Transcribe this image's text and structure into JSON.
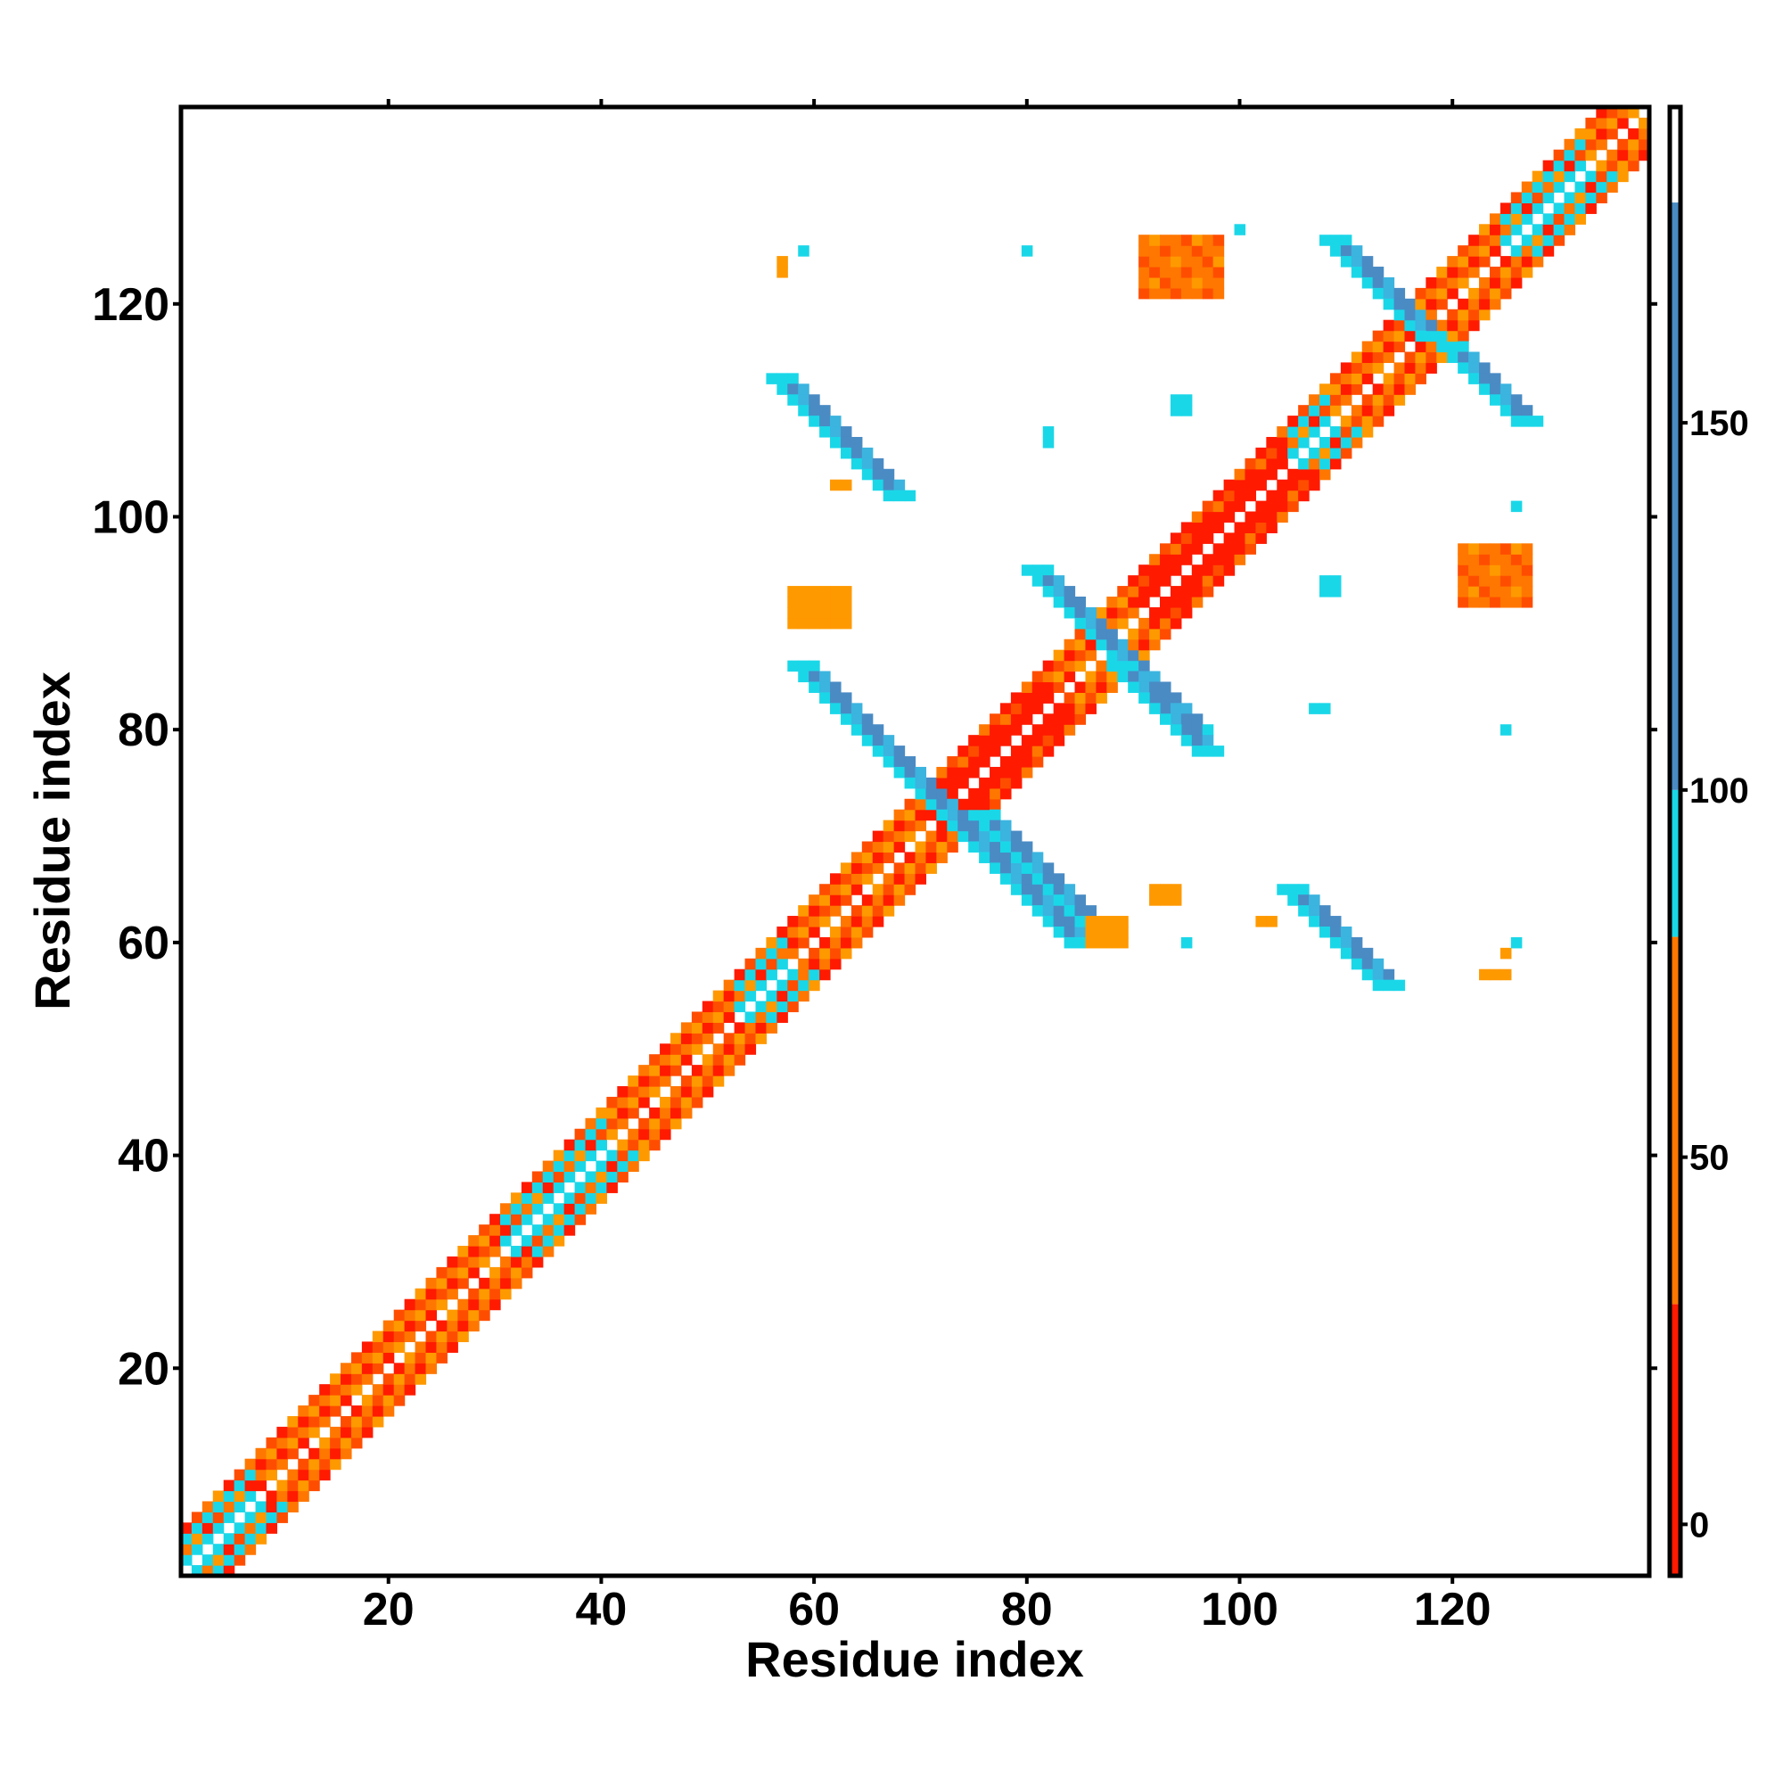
{
  "chart_data": {
    "type": "heatmap",
    "title": "",
    "xlabel": "Residue index",
    "ylabel": "Residue index",
    "xlim": [
      1,
      138
    ],
    "ylim": [
      1,
      138
    ],
    "x_ticks": [
      20,
      40,
      60,
      80,
      100,
      120
    ],
    "y_ticks": [
      20,
      40,
      60,
      80,
      100,
      120
    ],
    "grid": false,
    "colorbar": {
      "ticks": [
        0,
        50,
        100,
        150
      ],
      "range": [
        -7,
        193
      ],
      "placement": "right",
      "bands": [
        {
          "from": -7,
          "to": 30,
          "color": "#ff1a00"
        },
        {
          "from": 30,
          "to": 80,
          "color": "#ff7700"
        },
        {
          "from": 80,
          "to": 100,
          "color": "#1ad7e8"
        },
        {
          "from": 100,
          "to": 180,
          "color": "#4a8bc4"
        },
        {
          "from": 180,
          "to": 193,
          "color": "#ffffff"
        }
      ]
    },
    "colors": {
      "red": "#ff1a00",
      "red_orange": "#ff4d00",
      "orange": "#ff7700",
      "amber": "#ff9900",
      "cyan": "#1ad7e8",
      "light_blue": "#3bb4df",
      "steel_blue": "#4a8bc4"
    },
    "diagonal_band": {
      "from": 1,
      "to": 138,
      "offsets": [
        1,
        2,
        3,
        4
      ],
      "segments": [
        {
          "from": 1,
          "to": 7,
          "color": "cyan"
        },
        {
          "from": 7,
          "to": 30,
          "color": "orange"
        },
        {
          "from": 30,
          "to": 40,
          "color": "cyan"
        },
        {
          "from": 40,
          "to": 52,
          "color": "red_orange"
        },
        {
          "from": 52,
          "to": 57,
          "color": "cyan"
        },
        {
          "from": 57,
          "to": 70,
          "color": "orange"
        },
        {
          "from": 70,
          "to": 82,
          "color": "red"
        },
        {
          "from": 82,
          "to": 90,
          "color": "red_orange"
        },
        {
          "from": 90,
          "to": 104,
          "color": "red"
        },
        {
          "from": 104,
          "to": 108,
          "color": "cyan"
        },
        {
          "from": 108,
          "to": 124,
          "color": "red_orange"
        },
        {
          "from": 124,
          "to": 132,
          "color": "cyan"
        },
        {
          "from": 132,
          "to": 138,
          "color": "orange"
        }
      ]
    },
    "offdiagonal_features": [
      {
        "type": "anti",
        "x0": 56,
        "y0": 113,
        "len": 12,
        "width": 3,
        "color": "steel_blue"
      },
      {
        "type": "anti",
        "x0": 58,
        "y0": 86,
        "len": 27,
        "width": 3,
        "color": "steel_blue"
      },
      {
        "type": "anti",
        "x0": 75,
        "y0": 72,
        "len": 13,
        "width": 3,
        "color": "steel_blue"
      },
      {
        "type": "anti",
        "x0": 80,
        "y0": 95,
        "len": 16,
        "width": 3,
        "color": "steel_blue"
      },
      {
        "type": "anti",
        "x0": 88,
        "y0": 86,
        "len": 9,
        "width": 3,
        "color": "steel_blue"
      },
      {
        "type": "anti",
        "x0": 104,
        "y0": 65,
        "len": 10,
        "width": 3,
        "color": "steel_blue"
      },
      {
        "type": "anti",
        "x0": 108,
        "y0": 126,
        "len": 10,
        "width": 3,
        "color": "steel_blue"
      },
      {
        "type": "anti",
        "x0": 119,
        "y0": 116,
        "len": 8,
        "width": 3,
        "color": "steel_blue"
      },
      {
        "type": "blob",
        "x": 91,
        "y": 121,
        "w": 8,
        "h": 6,
        "color": "orange"
      },
      {
        "type": "blob",
        "x": 121,
        "y": 92,
        "w": 7,
        "h": 6,
        "color": "orange"
      },
      {
        "type": "blob",
        "x": 57,
        "y": 123,
        "w": 1,
        "h": 2,
        "color": "amber"
      },
      {
        "type": "blob",
        "x": 58,
        "y": 90,
        "w": 6,
        "h": 4,
        "color": "amber"
      },
      {
        "type": "blob",
        "x": 62,
        "y": 103,
        "w": 2,
        "h": 1,
        "color": "amber"
      },
      {
        "type": "blob",
        "x": 86,
        "y": 60,
        "w": 4,
        "h": 3,
        "color": "amber"
      },
      {
        "type": "blob",
        "x": 92,
        "y": 64,
        "w": 3,
        "h": 2,
        "color": "amber"
      },
      {
        "type": "blob",
        "x": 102,
        "y": 62,
        "w": 2,
        "h": 1,
        "color": "amber"
      },
      {
        "type": "blob",
        "x": 123,
        "y": 57,
        "w": 3,
        "h": 1,
        "color": "amber"
      },
      {
        "type": "blob",
        "x": 125,
        "y": 59,
        "w": 1,
        "h": 1,
        "color": "amber"
      },
      {
        "type": "blob",
        "x": 59,
        "y": 125,
        "w": 1,
        "h": 1,
        "color": "cyan"
      },
      {
        "type": "blob",
        "x": 80,
        "y": 125,
        "w": 1,
        "h": 1,
        "color": "cyan"
      },
      {
        "type": "blob",
        "x": 100,
        "y": 127,
        "w": 1,
        "h": 1,
        "color": "cyan"
      },
      {
        "type": "blob",
        "x": 82,
        "y": 107,
        "w": 1,
        "h": 2,
        "color": "cyan"
      },
      {
        "type": "blob",
        "x": 94,
        "y": 110,
        "w": 2,
        "h": 2,
        "color": "cyan"
      },
      {
        "type": "blob",
        "x": 108,
        "y": 93,
        "w": 2,
        "h": 2,
        "color": "cyan"
      },
      {
        "type": "blob",
        "x": 107,
        "y": 82,
        "w": 2,
        "h": 1,
        "color": "cyan"
      },
      {
        "type": "blob",
        "x": 125,
        "y": 80,
        "w": 1,
        "h": 1,
        "color": "cyan"
      },
      {
        "type": "blob",
        "x": 126,
        "y": 101,
        "w": 1,
        "h": 1,
        "color": "cyan"
      },
      {
        "type": "blob",
        "x": 95,
        "y": 60,
        "w": 1,
        "h": 1,
        "color": "cyan"
      },
      {
        "type": "blob",
        "x": 126,
        "y": 60,
        "w": 1,
        "h": 1,
        "color": "cyan"
      }
    ]
  }
}
